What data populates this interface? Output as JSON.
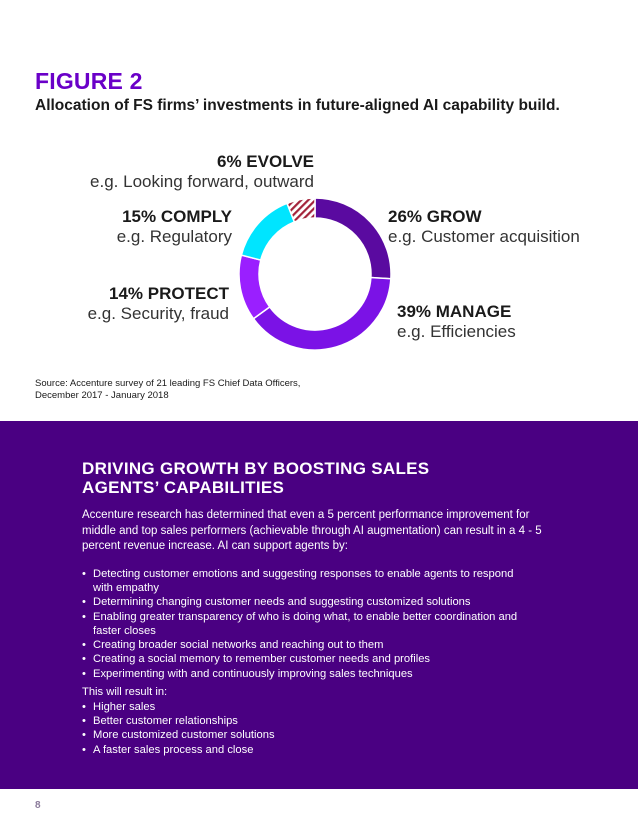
{
  "figure": {
    "label": "FIGURE 2",
    "title": "Allocation of FS firms’ investments in future-aligned AI capability build."
  },
  "chart_data": {
    "type": "pie",
    "style": "donut",
    "slices": [
      {
        "name": "GROW",
        "value": 26,
        "pct_label": "26% GROW",
        "example": "e.g. Customer acquisition",
        "color": "#5a0aa0"
      },
      {
        "name": "MANAGE",
        "value": 39,
        "pct_label": "39% MANAGE",
        "example": "e.g. Efficiencies",
        "color": "#7b12e6"
      },
      {
        "name": "PROTECT",
        "value": 14,
        "pct_label": "14% PROTECT",
        "example": "e.g. Security, fraud",
        "color": "#9a1fff"
      },
      {
        "name": "COMPLY",
        "value": 15,
        "pct_label": "15% COMPLY",
        "example": "e.g. Regulatory",
        "color": "#00e5ff"
      },
      {
        "name": "EVOLVE",
        "value": 6,
        "pct_label": "6% EVOLVE",
        "example": "e.g. Looking forward, outward",
        "color": "#a3223a",
        "pattern": "hatched"
      }
    ]
  },
  "source": {
    "line1": "Source: Accenture survey of 21 leading FS Chief Data Officers,",
    "line2": "December 2017 - January 2018"
  },
  "panel": {
    "title_line1": "DRIVING GROWTH BY BOOSTING SALES",
    "title_line2": "AGENTS’ CAPABILITIES",
    "intro": "Accenture research has determined that even a 5 percent performance improvement for middle and top sales performers (achievable through AI augmentation) can result in a 4 - 5 percent revenue increase. AI can support agents by:",
    "bullets": [
      "Detecting customer emotions and suggesting responses to enable agents to respond with empathy",
      "Determining changing customer needs and suggesting customized solutions",
      "Enabling greater transparency of who is doing what, to enable better coordination and faster closes",
      "Creating broader social networks and reaching out to them",
      "Creating a social memory to remember customer needs and profiles",
      "Experimenting with and continuously improving sales techniques"
    ],
    "result_intro": "This will result in:",
    "results": [
      "Higher sales",
      "Better customer relationships",
      "More customized customer solutions",
      "A faster sales process and close"
    ]
  },
  "page_number": "8"
}
